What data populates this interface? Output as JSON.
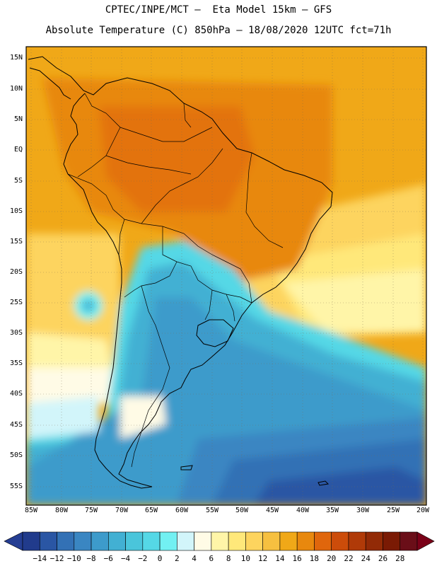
{
  "header": {
    "title_line1": "CPTEC/INPE/MCT –  Eta Model 15km – GFS",
    "title_line2": "Absolute Temperature (C) 850hPa – 18/08/2020 12UTC fct=71h"
  },
  "map": {
    "lat_labels": [
      "15N",
      "10N",
      "5N",
      "EQ",
      "5S",
      "10S",
      "15S",
      "20S",
      "25S",
      "30S",
      "35S",
      "40S",
      "45S",
      "50S",
      "55S"
    ],
    "lon_labels": [
      "85W",
      "80W",
      "75W",
      "70W",
      "65W",
      "60W",
      "55W",
      "50W",
      "45W",
      "40W",
      "35W",
      "30W",
      "25W",
      "20W"
    ]
  },
  "colorbar": {
    "labels": [
      "-14",
      "-12",
      "-10",
      "-8",
      "-6",
      "-4",
      "-2",
      "0",
      "2",
      "4",
      "6",
      "8",
      "10",
      "12",
      "14",
      "16",
      "18",
      "20",
      "22",
      "24",
      "26",
      "28"
    ],
    "colors": [
      "#213b8c",
      "#2a56a4",
      "#3371b5",
      "#3a86c2",
      "#3d9bcb",
      "#42b0d3",
      "#4ac5db",
      "#55d8e6",
      "#72f0f2",
      "#d2f5fa",
      "#fffbe6",
      "#fff5a8",
      "#ffe87a",
      "#fdd45e",
      "#f6c040",
      "#f0a818",
      "#e8880e",
      "#e0660c",
      "#cc4c0a",
      "#b03a08",
      "#922a06",
      "#7a1a04",
      "#6a0e18"
    ],
    "under_color": "#253e93",
    "over_color": "#7a0018"
  }
}
